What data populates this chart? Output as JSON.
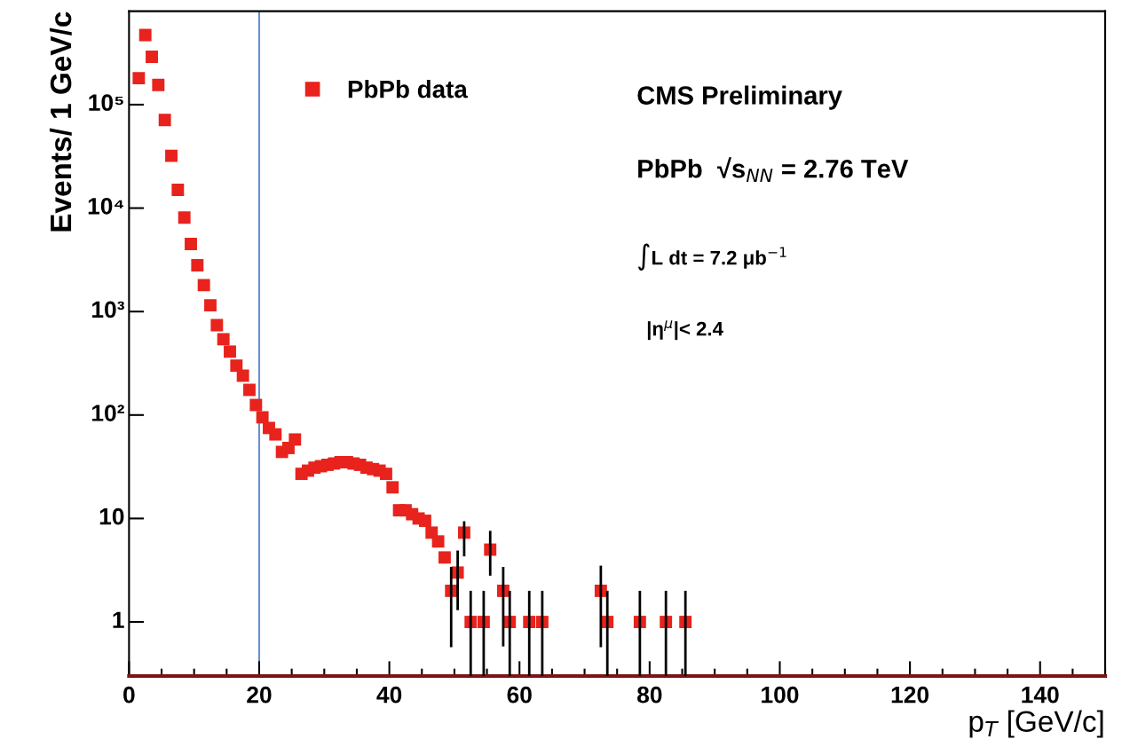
{
  "chart_data": {
    "type": "scatter",
    "xlabel": "p$_{T}$ [GeV/c]",
    "ylabel": "Events/ 1 GeV/c",
    "xlim": [
      0,
      150
    ],
    "xticks": [
      0,
      20,
      40,
      60,
      80,
      100,
      120,
      140
    ],
    "ylim": [
      0.3,
      800000
    ],
    "log": "y",
    "yticks": [
      1,
      10,
      {
        "value": 100,
        "label": "10²"
      },
      {
        "value": 1000,
        "label": "10³"
      },
      {
        "value": 10000,
        "label": "10⁴"
      },
      {
        "value": 100000,
        "label": "10⁵"
      }
    ],
    "marker": "square",
    "grid": false,
    "legend": "top left",
    "series": [
      {
        "name": "PbPb data",
        "color": "#e8221c",
        "x": [
          1.5,
          2.5,
          3.5,
          4.5,
          5.5,
          6.5,
          7.5,
          8.5,
          9.5,
          10.5,
          11.5,
          12.5,
          13.5,
          14.5,
          15.5,
          16.5,
          17.5,
          18.5,
          19.5,
          20.5,
          21.5,
          22.5,
          23.5,
          24.5,
          25.5,
          26.5,
          27.5,
          28.5,
          29.5,
          30.5,
          31.5,
          32.5,
          33.5,
          34.5,
          35.5,
          36.5,
          37.5,
          38.5,
          39.5,
          40.5,
          41.5,
          42.5,
          43.5,
          44.5,
          45.5,
          46.5,
          47.5,
          48.5,
          49.5,
          50.5,
          51.5,
          52.5,
          54.5,
          55.5,
          57.5,
          58.5,
          61.5,
          63.5,
          72.5,
          73.5,
          78.5,
          82.5,
          85.5
        ],
        "values": [
          180000,
          470000,
          290000,
          155000,
          71000,
          32000,
          15000,
          8100,
          4500,
          2800,
          1800,
          1150,
          740,
          540,
          410,
          300,
          240,
          175,
          125,
          95,
          75,
          65,
          44,
          48,
          58,
          27,
          29,
          31,
          32,
          33,
          34,
          35,
          35,
          34,
          33,
          31,
          30,
          29,
          27,
          20,
          12,
          12,
          11,
          10,
          9.5,
          7.3,
          6,
          4.2,
          2,
          3,
          7.3,
          1,
          1,
          5,
          2,
          1,
          1,
          1,
          2,
          1,
          1,
          1,
          1
        ],
        "errors": [
          null,
          null,
          null,
          null,
          null,
          null,
          null,
          null,
          null,
          null,
          null,
          null,
          null,
          null,
          null,
          null,
          null,
          null,
          null,
          null,
          null,
          null,
          null,
          null,
          null,
          null,
          null,
          null,
          null,
          null,
          null,
          null,
          null,
          null,
          null,
          null,
          null,
          null,
          null,
          null,
          null,
          null,
          null,
          null,
          null,
          null,
          null,
          null,
          [
            0.57,
            3.4
          ],
          [
            1.3,
            4.9
          ],
          [
            4.3,
            9.4
          ],
          [
            0.3,
            2
          ],
          [
            0.3,
            2
          ],
          [
            2.8,
            7.6
          ],
          [
            0.58,
            3.4
          ],
          [
            0.3,
            2
          ],
          [
            0.3,
            2
          ],
          [
            0.3,
            2
          ],
          [
            0.57,
            3.5
          ],
          [
            0.3,
            2
          ],
          [
            0.3,
            2
          ],
          [
            0.3,
            2
          ],
          [
            0.3,
            2
          ]
        ]
      }
    ],
    "ref_lines": [
      {
        "axis": "x",
        "value": 20,
        "color": "#6a8fd0"
      }
    ],
    "annotations": [
      "CMS Preliminary",
      "PbPb  √s$_{NN}$ = 2.76 TeV",
      "∫L dt = 7.2 μb$^{−1}$",
      "|η$^{μ}$|< 2.4"
    ]
  }
}
